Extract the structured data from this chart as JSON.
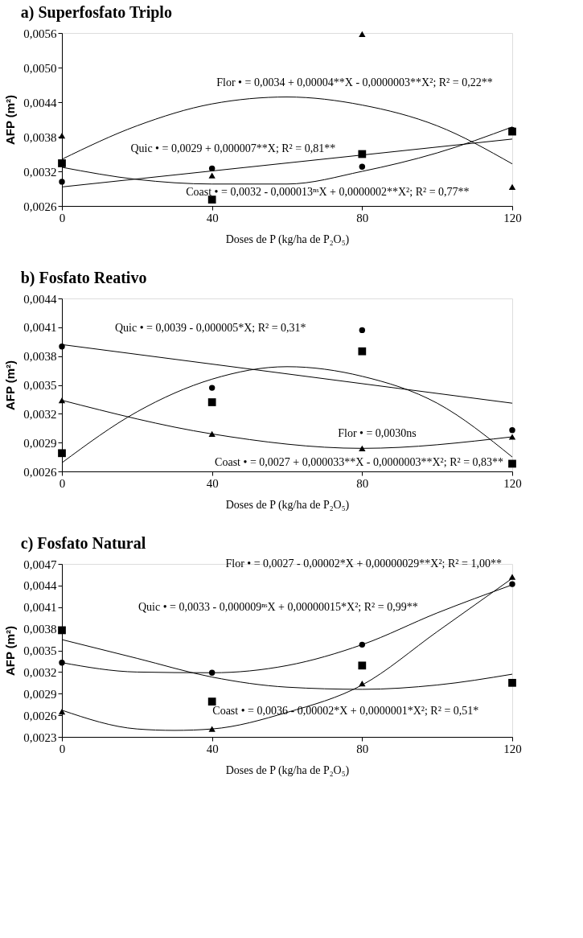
{
  "chart_data": [
    {
      "type": "scatter",
      "title": "a) Superfosfato Triplo",
      "xlabel": "Doses de P (kg/ha de P₂O₅)",
      "ylabel": "AFP (m²)",
      "xlim": [
        0,
        120
      ],
      "xticks": [
        0,
        40,
        80,
        120
      ],
      "ylim": [
        0.0026,
        0.0056
      ],
      "yticks": [
        {
          "value": 0.0026,
          "label": "0,0026"
        },
        {
          "value": 0.0032,
          "label": "0,0032"
        },
        {
          "value": 0.0038,
          "label": "0,0038"
        },
        {
          "value": 0.0044,
          "label": "0,0044"
        },
        {
          "value": 0.005,
          "label": "0,0050"
        },
        {
          "value": 0.0056,
          "label": "0,0056"
        }
      ],
      "series": [
        {
          "marker": "triangle",
          "color": "#000000",
          "x": [
            0,
            40,
            80,
            120
          ],
          "values": [
            0.00382,
            0.00313,
            0.00558,
            0.00293
          ]
        },
        {
          "marker": "square",
          "color": "#000000",
          "x": [
            0,
            40,
            80,
            120
          ],
          "values": [
            0.00334,
            0.00271,
            0.0035,
            0.00389
          ]
        },
        {
          "marker": "circle",
          "color": "#000000",
          "x": [
            0,
            40,
            80,
            120
          ],
          "values": [
            0.00302,
            0.00325,
            0.00328,
            0.00392
          ]
        },
        {
          "type": "line",
          "color": "#000000",
          "x": [
            0,
            20,
            40,
            60,
            80,
            100,
            120
          ],
          "values": [
            0.00341,
            0.00399,
            0.00437,
            0.00449,
            0.00435,
            0.00399,
            0.00333
          ]
        },
        {
          "type": "line",
          "color": "#000000",
          "x": [
            0,
            120
          ],
          "values": [
            0.00293,
            0.00376
          ]
        },
        {
          "type": "line",
          "color": "#000000",
          "x": [
            0,
            20,
            40,
            60,
            80,
            100,
            120
          ],
          "values": [
            0.00327,
            0.00306,
            0.00298,
            0.00298,
            0.0032,
            0.00352,
            0.00397
          ]
        }
      ],
      "annotations": [
        "Flor • = 0,0034 + 0,00004**X - 0,0000003**X²; R² = 0,22**",
        "Quic • = 0,0029 + 0,000007**X; R² = 0,81**",
        "Coast • = 0,0032 - 0,000013ⁿˢX + 0,0000002**X²; R² = 0,77**"
      ]
    },
    {
      "type": "scatter",
      "title": "b) Fosfato Reativo",
      "xlabel": "Doses de P (kg/ha de P₂O₅)",
      "ylabel": "AFP (m²)",
      "xlim": [
        0,
        120
      ],
      "xticks": [
        0,
        40,
        80,
        120
      ],
      "ylim": [
        0.0026,
        0.0044
      ],
      "yticks": [
        {
          "value": 0.0026,
          "label": "0,0026"
        },
        {
          "value": 0.0029,
          "label": "0,0029"
        },
        {
          "value": 0.0032,
          "label": "0,0032"
        },
        {
          "value": 0.0035,
          "label": "0,0035"
        },
        {
          "value": 0.0038,
          "label": "0,0038"
        },
        {
          "value": 0.0041,
          "label": "0,0041"
        },
        {
          "value": 0.0044,
          "label": "0,0044"
        }
      ],
      "series": [
        {
          "marker": "circle",
          "color": "#000000",
          "x": [
            0,
            40,
            80,
            120
          ],
          "values": [
            0.0039,
            0.00347,
            0.00407,
            0.00303
          ]
        },
        {
          "marker": "square",
          "color": "#000000",
          "x": [
            0,
            40,
            80,
            120
          ],
          "values": [
            0.00279,
            0.00332,
            0.00385,
            0.00268
          ]
        },
        {
          "marker": "triangle",
          "color": "#000000",
          "x": [
            0,
            40,
            80,
            120
          ],
          "values": [
            0.00334,
            0.00299,
            0.00284,
            0.00296
          ]
        },
        {
          "type": "line",
          "color": "#000000",
          "x": [
            0,
            40,
            80,
            120
          ],
          "values": [
            0.00334,
            0.00299,
            0.00284,
            0.00296
          ]
        },
        {
          "type": "line",
          "color": "#000000",
          "x": [
            0,
            120
          ],
          "values": [
            0.00392,
            0.00331
          ]
        },
        {
          "type": "line",
          "color": "#000000",
          "x": [
            0,
            20,
            40,
            60,
            80,
            100,
            120
          ],
          "values": [
            0.00269,
            0.00322,
            0.00356,
            0.00369,
            0.00359,
            0.00331,
            0.00275
          ]
        }
      ],
      "annotations": [
        "Quic • = 0,0039 - 0,000005*X; R² = 0,31*",
        "Flor • = 0,0030ns",
        "Coast • = 0,0027 + 0,000033**X - 0,0000003**X²; R² = 0,83**"
      ]
    },
    {
      "type": "scatter",
      "title": "c) Fosfato Natural",
      "xlabel": "Doses de P (kg/ha de P₂O₅)",
      "ylabel": "AFP (m²)",
      "xlim": [
        0,
        120
      ],
      "xticks": [
        0,
        40,
        80,
        120
      ],
      "ylim": [
        0.0023,
        0.0047
      ],
      "yticks": [
        {
          "value": 0.0023,
          "label": "0,0023"
        },
        {
          "value": 0.0026,
          "label": "0,0026"
        },
        {
          "value": 0.0029,
          "label": "0,0029"
        },
        {
          "value": 0.0032,
          "label": "0,0032"
        },
        {
          "value": 0.0035,
          "label": "0,0035"
        },
        {
          "value": 0.0038,
          "label": "0,0038"
        },
        {
          "value": 0.0041,
          "label": "0,0041"
        },
        {
          "value": 0.0044,
          "label": "0,0044"
        },
        {
          "value": 0.0047,
          "label": "0,0047"
        }
      ],
      "series": [
        {
          "marker": "circle",
          "color": "#000000",
          "x": [
            0,
            40,
            80,
            120
          ],
          "values": [
            0.00333,
            0.00319,
            0.00358,
            0.00442
          ]
        },
        {
          "marker": "square",
          "color": "#000000",
          "x": [
            0,
            40,
            80,
            120
          ],
          "values": [
            0.00378,
            0.00279,
            0.00329,
            0.00305
          ]
        },
        {
          "marker": "triangle",
          "color": "#000000",
          "x": [
            0,
            40,
            80,
            120
          ],
          "values": [
            0.00265,
            0.00241,
            0.00304,
            0.00452
          ]
        },
        {
          "type": "line",
          "color": "#000000",
          "x": [
            0,
            20,
            40,
            60,
            80,
            100,
            120
          ],
          "values": [
            0.00333,
            0.0032,
            0.00319,
            0.00329,
            0.00358,
            0.00402,
            0.00441
          ]
        },
        {
          "type": "line",
          "color": "#000000",
          "x": [
            0,
            20,
            40,
            60,
            80,
            100,
            120
          ],
          "values": [
            0.00365,
            0.00339,
            0.00313,
            0.00299,
            0.00296,
            0.00302,
            0.00317
          ]
        },
        {
          "type": "line",
          "color": "#000000",
          "x": [
            0,
            20,
            30,
            40,
            60,
            80,
            100,
            120
          ],
          "values": [
            0.00267,
            0.00241,
            0.00239,
            0.00241,
            0.00264,
            0.00302,
            0.00376,
            0.0045
          ]
        }
      ],
      "annotations": [
        "Flor • = 0,0027 - 0,00002*X + 0,00000029**X²; R² = 1,00**",
        "Quic • = 0,0033 - 0,000009ⁿˢX + 0,00000015*X²; R² = 0,99**",
        "Coast • = 0,0036 - 0,00002*X + 0,0000001*X²; R² = 0,51*"
      ]
    }
  ]
}
